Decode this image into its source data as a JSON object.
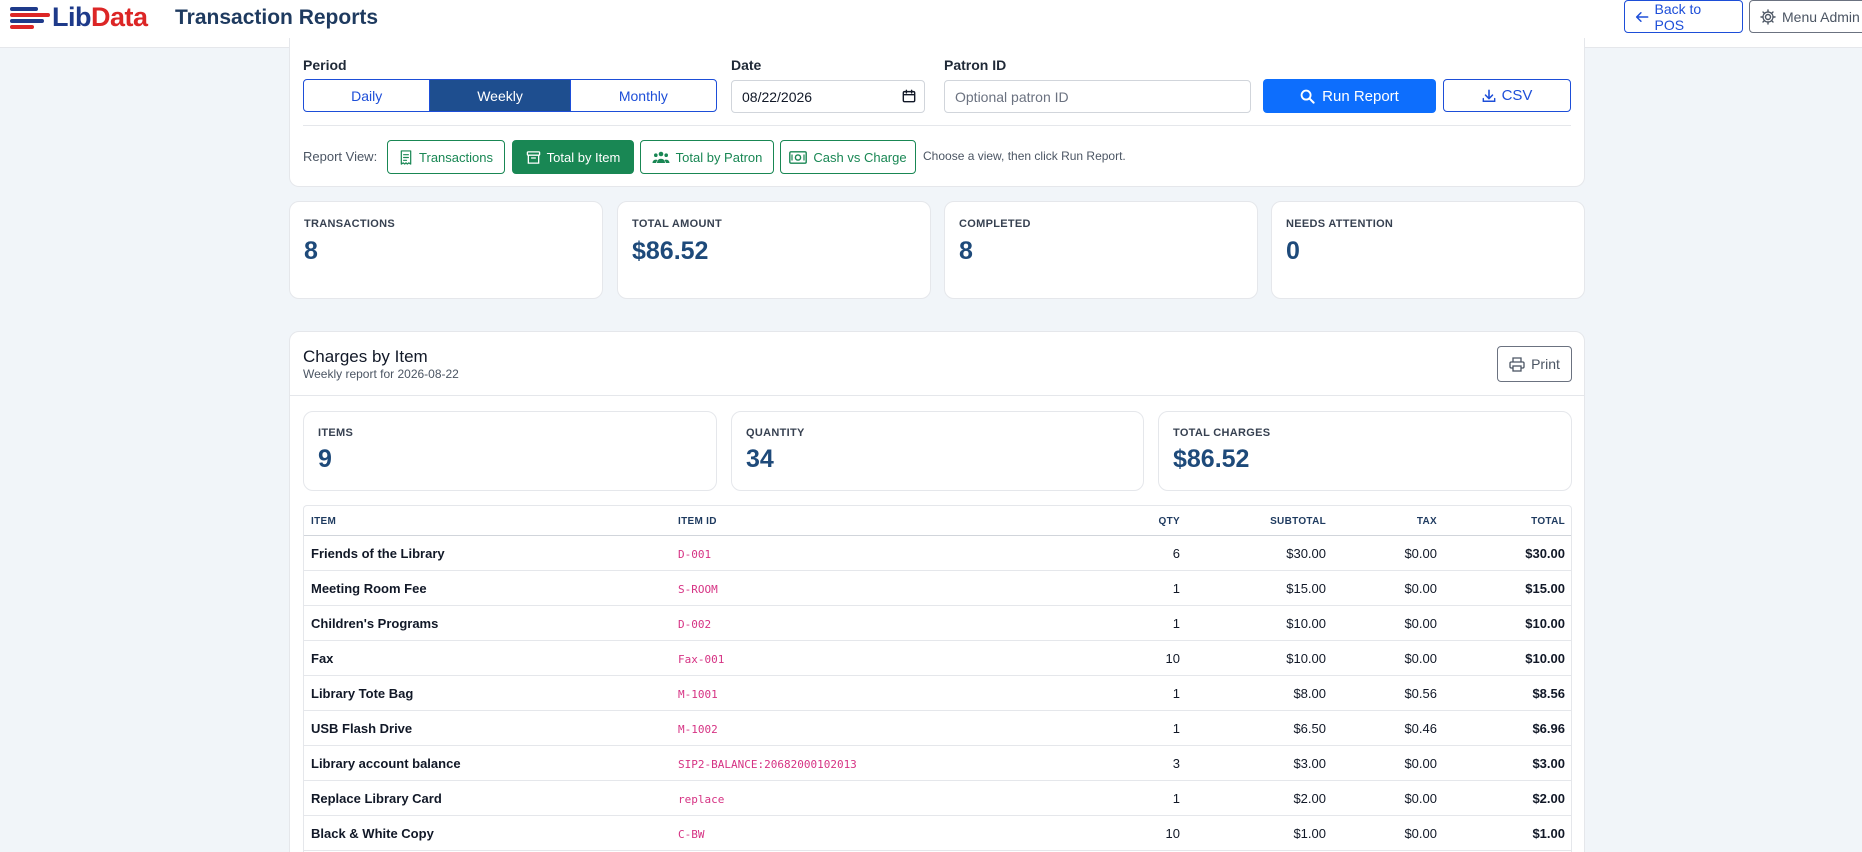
{
  "header": {
    "logo_lib": "Lib",
    "logo_data": "Data",
    "title": "Transaction Reports",
    "back_label": "Back to POS",
    "menu_label": "Menu Admin",
    "brand_colors": {
      "navy": "#1e3a8a",
      "red": "#dc2626"
    }
  },
  "filters": {
    "period_label": "Period",
    "periods": [
      "Daily",
      "Weekly",
      "Monthly"
    ],
    "active_period": "Weekly",
    "date_label": "Date",
    "date_value": "08/22/2026",
    "patron_label": "Patron ID",
    "patron_placeholder": "Optional patron ID",
    "run_label": "Run Report",
    "csv_label": "CSV"
  },
  "report_view": {
    "label": "Report View:",
    "views": [
      "Transactions",
      "Total by Item",
      "Total by Patron",
      "Cash vs Charge"
    ],
    "active_view": "Total by Item",
    "hint": "Choose a view, then click Run Report."
  },
  "summary": [
    {
      "label": "TRANSACTIONS",
      "value": "8"
    },
    {
      "label": "TOTAL AMOUNT",
      "value": "$86.52"
    },
    {
      "label": "COMPLETED",
      "value": "8"
    },
    {
      "label": "NEEDS ATTENTION",
      "value": "0"
    }
  ],
  "section": {
    "title": "Charges by Item",
    "subtitle": "Weekly report for 2026-08-22",
    "print_label": "Print"
  },
  "section_stats": [
    {
      "label": "ITEMS",
      "value": "9"
    },
    {
      "label": "QUANTITY",
      "value": "34"
    },
    {
      "label": "TOTAL CHARGES",
      "value": "$86.52"
    }
  ],
  "table": {
    "headers": {
      "item": "ITEM",
      "item_id": "ITEM ID",
      "qty": "QTY",
      "subtotal": "SUBTOTAL",
      "tax": "TAX",
      "total": "TOTAL"
    },
    "rows": [
      {
        "item": "Friends of the Library",
        "item_id": "D-001",
        "qty": "6",
        "subtotal": "$30.00",
        "tax": "$0.00",
        "total": "$30.00"
      },
      {
        "item": "Meeting Room Fee",
        "item_id": "S-ROOM",
        "qty": "1",
        "subtotal": "$15.00",
        "tax": "$0.00",
        "total": "$15.00"
      },
      {
        "item": "Children's Programs",
        "item_id": "D-002",
        "qty": "1",
        "subtotal": "$10.00",
        "tax": "$0.00",
        "total": "$10.00"
      },
      {
        "item": "Fax",
        "item_id": "Fax-001",
        "qty": "10",
        "subtotal": "$10.00",
        "tax": "$0.00",
        "total": "$10.00"
      },
      {
        "item": "Library Tote Bag",
        "item_id": "M-1001",
        "qty": "1",
        "subtotal": "$8.00",
        "tax": "$0.56",
        "total": "$8.56"
      },
      {
        "item": "USB Flash Drive",
        "item_id": "M-1002",
        "qty": "1",
        "subtotal": "$6.50",
        "tax": "$0.46",
        "total": "$6.96"
      },
      {
        "item": "Library account balance",
        "item_id": "SIP2-BALANCE:20682000102013",
        "qty": "3",
        "subtotal": "$3.00",
        "tax": "$0.00",
        "total": "$3.00"
      },
      {
        "item": "Replace Library Card",
        "item_id": "replace",
        "qty": "1",
        "subtotal": "$2.00",
        "tax": "$0.00",
        "total": "$2.00"
      },
      {
        "item": "Black & White Copy",
        "item_id": "C-BW",
        "qty": "10",
        "subtotal": "$1.00",
        "tax": "$0.00",
        "total": "$1.00"
      }
    ]
  }
}
